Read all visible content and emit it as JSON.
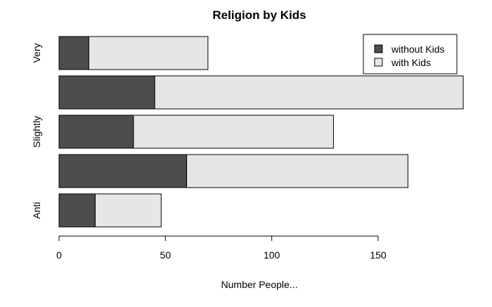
{
  "chart_data": {
    "type": "bar",
    "orientation": "horizontal",
    "stacked": true,
    "title": "Religion by Kids",
    "xlabel": "Number People...",
    "ylabel": "",
    "categories": [
      "Anti",
      "",
      "Slightly",
      "",
      "Very"
    ],
    "series": [
      {
        "name": "without Kids",
        "values": [
          17,
          60,
          35,
          45,
          14
        ]
      },
      {
        "name": "with Kids",
        "values": [
          31,
          104,
          94,
          145,
          56
        ]
      }
    ],
    "xlim": [
      0,
      190
    ],
    "xticks": [
      0,
      50,
      100,
      150
    ],
    "grid": false,
    "legend_position": "top-right",
    "colors": {
      "without Kids": "#4d4d4d",
      "with Kids": "#e6e6e6",
      "border": "#000000"
    }
  }
}
